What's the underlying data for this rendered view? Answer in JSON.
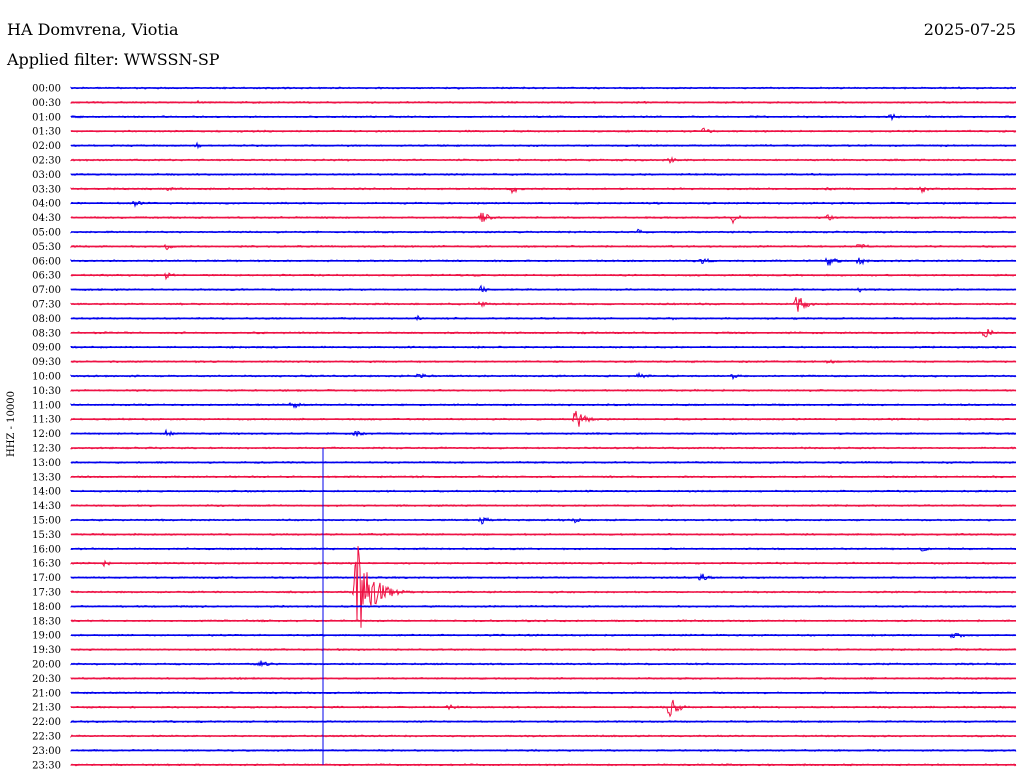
{
  "header": {
    "station": "HA Domvrena, Viotia",
    "filter": "Applied filter: WWSSN-SP",
    "date": "2025-07-25"
  },
  "colors": {
    "blue_trace": "#0000ee",
    "red_trace": "#ee1144"
  },
  "chart_data": {
    "type": "helicorder",
    "ylabel": "HHZ - 10000",
    "row_labels": [
      "00:00",
      "00:30",
      "01:00",
      "01:30",
      "02:00",
      "02:30",
      "03:00",
      "03:30",
      "04:00",
      "04:30",
      "05:00",
      "05:30",
      "06:00",
      "06:30",
      "07:00",
      "07:30",
      "08:00",
      "08:30",
      "09:00",
      "09:30",
      "10:00",
      "10:30",
      "11:00",
      "11:30",
      "12:00",
      "12:30",
      "13:00",
      "13:30",
      "14:00",
      "14:30",
      "15:00",
      "15:30",
      "16:00",
      "16:30",
      "17:00",
      "17:30",
      "18:00",
      "18:30",
      "19:00",
      "19:30",
      "20:00",
      "20:30",
      "21:00",
      "21:30",
      "22:00",
      "22:30",
      "23:00",
      "23:30"
    ],
    "row_colors": [
      "blue",
      "red"
    ],
    "minutes_per_row": 30,
    "events": [
      {
        "time": "00:34",
        "amp": 2
      },
      {
        "time": "01:26",
        "amp": 4
      },
      {
        "time": "01:50",
        "amp": 5
      },
      {
        "time": "02:04",
        "amp": 3
      },
      {
        "time": "02:49",
        "amp": 3
      },
      {
        "time": "03:12",
        "amp": 2
      },
      {
        "time": "03:33",
        "amp": 3
      },
      {
        "time": "03:44",
        "amp": 5
      },
      {
        "time": "03:54",
        "amp": 3
      },
      {
        "time": "03:57",
        "amp": 5
      },
      {
        "time": "04:02",
        "amp": 4
      },
      {
        "time": "04:43",
        "amp": 7
      },
      {
        "time": "04:51",
        "amp": 6
      },
      {
        "time": "04:54",
        "amp": 4
      },
      {
        "time": "05:18",
        "amp": 3
      },
      {
        "time": "05:33",
        "amp": 4
      },
      {
        "time": "05:55",
        "amp": 4
      },
      {
        "time": "06:20",
        "amp": 5
      },
      {
        "time": "06:24",
        "amp": 7
      },
      {
        "time": "06:25",
        "amp": 5
      },
      {
        "time": "06:33",
        "amp": 4
      },
      {
        "time": "07:13",
        "amp": 4
      },
      {
        "time": "07:25",
        "amp": 3
      },
      {
        "time": "07:43",
        "amp": 4
      },
      {
        "time": "07:53",
        "amp": 12
      },
      {
        "time": "08:11",
        "amp": 3
      },
      {
        "time": "08:19",
        "amp": 3
      },
      {
        "time": "08:59",
        "amp": 6
      },
      {
        "time": "09:54",
        "amp": 3
      },
      {
        "time": "10:11",
        "amp": 4
      },
      {
        "time": "10:18",
        "amp": 5
      },
      {
        "time": "10:21",
        "amp": 3
      },
      {
        "time": "11:07",
        "amp": 5
      },
      {
        "time": "11:46",
        "amp": 14
      },
      {
        "time": "12:03",
        "amp": 4
      },
      {
        "time": "12:09",
        "amp": 4
      },
      {
        "time": "15:13",
        "amp": 5
      },
      {
        "time": "15:16",
        "amp": 3
      },
      {
        "time": "16:27",
        "amp": 3
      },
      {
        "time": "16:31",
        "amp": 4
      },
      {
        "time": "17:20",
        "amp": 5
      },
      {
        "time": "17:39",
        "amp": 60
      },
      {
        "time": "19:28",
        "amp": 6
      },
      {
        "time": "20:06",
        "amp": 4
      },
      {
        "time": "21:42",
        "amp": 4
      },
      {
        "time": "21:49",
        "amp": 4
      },
      {
        "time": "21:49",
        "amp": 12
      },
      {
        "time": "22:04",
        "amp": 2
      }
    ],
    "spikes": [
      {
        "time": "12:38",
        "to": "23:30"
      }
    ]
  }
}
